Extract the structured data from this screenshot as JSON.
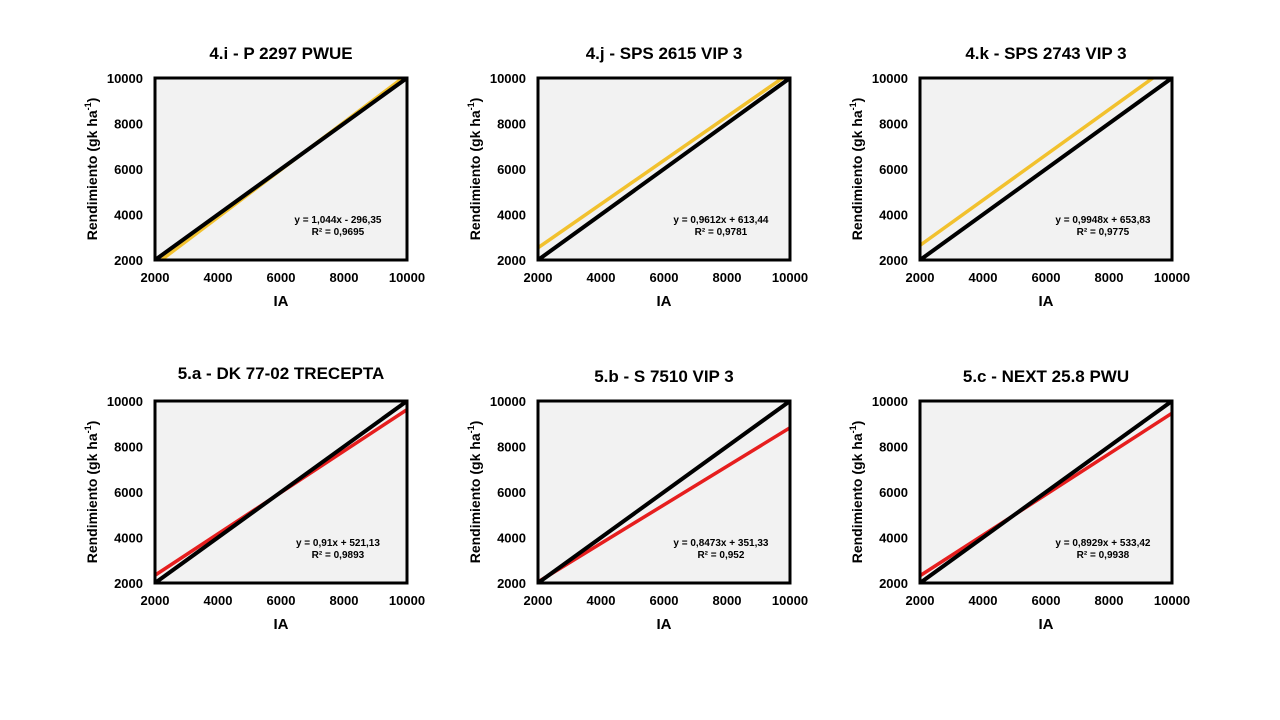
{
  "colors": {
    "background": "#ffffff",
    "plot_bg": "#f2f2f2",
    "reference_line": "#000000",
    "yellow_series": "#f2c12e",
    "red_series": "#e61e1e"
  },
  "chart_data": [
    {
      "type": "line",
      "title": "4.i -  P 2297 PWUE",
      "xlabel": "IA",
      "ylabel": "Rendimiento (gk ha",
      "ylabel_sup": "-1",
      "ylabel_close": ")",
      "xlim": [
        2000,
        10000
      ],
      "ylim": [
        2000,
        10000
      ],
      "xticks": [
        "2000",
        "4000",
        "6000",
        "8000",
        "10000"
      ],
      "yticks": [
        "2000",
        "4000",
        "6000",
        "8000",
        "10000"
      ],
      "series": [
        {
          "name": "1:1",
          "color_key": "reference_line",
          "x": [
            2000,
            10000
          ],
          "y": [
            2000,
            10000
          ]
        },
        {
          "name": "regresión",
          "color_key": "yellow_series",
          "slope": 1.044,
          "intercept": -296.35,
          "x": [
            2200,
            9865
          ]
        }
      ],
      "equation": "y = 1,044x - 296,35",
      "r2": "R² = 0,9695"
    },
    {
      "type": "line",
      "title": "4.j -  SPS 2615 VIP 3",
      "xlabel": "IA",
      "ylabel": "Rendimiento (gk ha",
      "ylabel_sup": "-1",
      "ylabel_close": ")",
      "xlim": [
        2000,
        10000
      ],
      "ylim": [
        2000,
        10000
      ],
      "xticks": [
        "2000",
        "4000",
        "6000",
        "8000",
        "10000"
      ],
      "yticks": [
        "2000",
        "4000",
        "6000",
        "8000",
        "10000"
      ],
      "series": [
        {
          "name": "1:1",
          "color_key": "reference_line",
          "x": [
            2000,
            10000
          ],
          "y": [
            2000,
            10000
          ]
        },
        {
          "name": "regresión",
          "color_key": "yellow_series",
          "slope": 0.9612,
          "intercept": 613.44,
          "x": [
            2000,
            9765
          ]
        }
      ],
      "equation": "y = 0,9612x + 613,44",
      "r2": "R² = 0,9781"
    },
    {
      "type": "line",
      "title": "4.k -  SPS 2743 VIP 3",
      "xlabel": "IA",
      "ylabel": "Rendimiento (gk ha",
      "ylabel_sup": "-1",
      "ylabel_close": ")",
      "xlim": [
        2000,
        10000
      ],
      "ylim": [
        2000,
        10000
      ],
      "xticks": [
        "2000",
        "4000",
        "6000",
        "8000",
        "10000"
      ],
      "yticks": [
        "2000",
        "4000",
        "6000",
        "8000",
        "10000"
      ],
      "series": [
        {
          "name": "1:1",
          "color_key": "reference_line",
          "x": [
            2000,
            10000
          ],
          "y": [
            2000,
            10000
          ]
        },
        {
          "name": "regresión",
          "color_key": "yellow_series",
          "slope": 0.9948,
          "intercept": 653.83,
          "x": [
            2000,
            9395
          ]
        }
      ],
      "equation": "y = 0,9948x + 653,83",
      "r2": "R² = 0,9775"
    },
    {
      "type": "line",
      "title": "5.a -  DK 77-02 TRECEPTA",
      "xlabel": "IA",
      "ylabel": "Rendimiento (gk ha",
      "ylabel_sup": "-1",
      "ylabel_close": ")",
      "xlim": [
        2000,
        10000
      ],
      "ylim": [
        2000,
        10000
      ],
      "xticks": [
        "2000",
        "4000",
        "6000",
        "8000",
        "10000"
      ],
      "yticks": [
        "2000",
        "4000",
        "6000",
        "8000",
        "10000"
      ],
      "series": [
        {
          "name": "1:1",
          "color_key": "reference_line",
          "x": [
            2000,
            10000
          ],
          "y": [
            2000,
            10000
          ]
        },
        {
          "name": "regresión",
          "color_key": "red_series",
          "slope": 0.91,
          "intercept": 521.13,
          "x": [
            2000,
            10000
          ]
        }
      ],
      "equation": "y = 0,91x + 521,13",
      "r2": "R² = 0,9893"
    },
    {
      "type": "line",
      "title": "5.b -  S 7510 VIP 3",
      "xlabel": "IA",
      "ylabel": "Rendimiento (gk ha",
      "ylabel_sup": "-1",
      "ylabel_close": ")",
      "xlim": [
        2000,
        10000
      ],
      "ylim": [
        2000,
        10000
      ],
      "xticks": [
        "2000",
        "4000",
        "6000",
        "8000",
        "10000"
      ],
      "yticks": [
        "2000",
        "4000",
        "6000",
        "8000",
        "10000"
      ],
      "series": [
        {
          "name": "1:1",
          "color_key": "reference_line",
          "x": [
            2000,
            10000
          ],
          "y": [
            2000,
            10000
          ]
        },
        {
          "name": "regresión",
          "color_key": "red_series",
          "slope": 0.8473,
          "intercept": 351.33,
          "x": [
            2000,
            10000
          ]
        }
      ],
      "equation": "y = 0,8473x + 351,33",
      "r2": "R² = 0,952"
    },
    {
      "type": "line",
      "title": "5.c -  NEXT 25.8 PWU",
      "xlabel": "IA",
      "ylabel": "Rendimiento (gk ha",
      "ylabel_sup": "-1",
      "ylabel_close": ")",
      "xlim": [
        2000,
        10000
      ],
      "ylim": [
        2000,
        10000
      ],
      "xticks": [
        "2000",
        "4000",
        "6000",
        "8000",
        "10000"
      ],
      "yticks": [
        "2000",
        "4000",
        "6000",
        "8000",
        "10000"
      ],
      "series": [
        {
          "name": "1:1",
          "color_key": "reference_line",
          "x": [
            2000,
            10000
          ],
          "y": [
            2000,
            10000
          ]
        },
        {
          "name": "regresión",
          "color_key": "red_series",
          "slope": 0.8929,
          "intercept": 533.42,
          "x": [
            2000,
            10000
          ]
        }
      ],
      "equation": "y = 0,8929x + 533,42",
      "r2": "R² = 0,9938"
    }
  ]
}
